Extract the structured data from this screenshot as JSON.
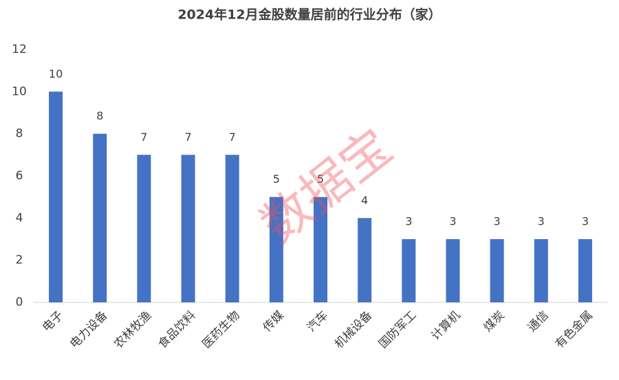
{
  "chart_data": {
    "type": "bar",
    "title": "2024年12月金股数量居前的行业分布（家）",
    "categories": [
      "电子",
      "电力设备",
      "农林牧渔",
      "食品饮料",
      "医药生物",
      "传媒",
      "汽车",
      "机械设备",
      "国防军工",
      "计算机",
      "煤炭",
      "通信",
      "有色金属"
    ],
    "values": [
      10,
      8,
      7,
      7,
      7,
      5,
      5,
      4,
      3,
      3,
      3,
      3,
      3
    ],
    "color": "#4472c4",
    "ylim": [
      0,
      12
    ],
    "yticks": [
      0,
      2,
      4,
      6,
      8,
      10,
      12
    ],
    "grid": false,
    "watermark": "数据宝"
  }
}
